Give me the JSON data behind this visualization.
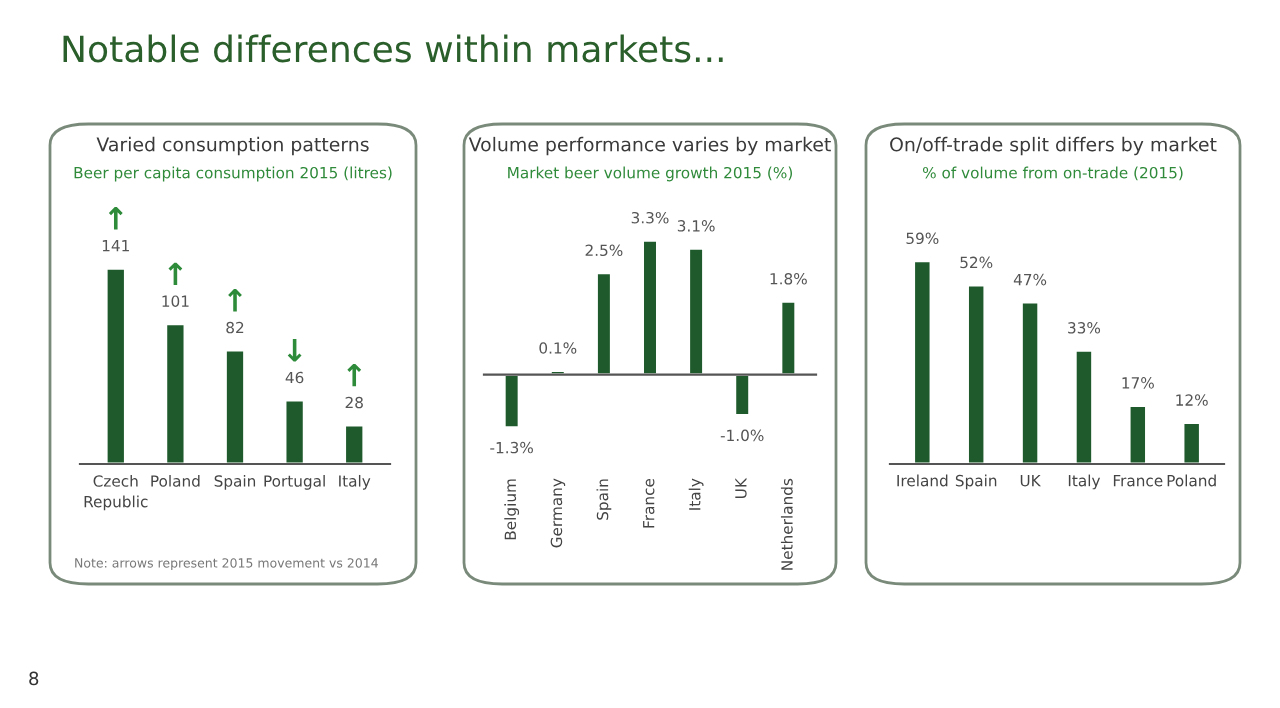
{
  "chart_data": [
    {
      "type": "bar",
      "title": "Varied consumption patterns",
      "subtitle": "Beer per capita consumption 2015 (litres)",
      "categories": [
        "Czech\nRepublic",
        "Poland",
        "Spain",
        "Portugal",
        "Italy"
      ],
      "values": [
        141,
        101,
        82,
        46,
        28
      ],
      "color": "#1e5a2b",
      "data_labels": true,
      "tick_labels": "x",
      "grid": false,
      "annotations": [
        "Notable differences within markets...",
        "Note: arrows represent 2015 movement vs 2014",
        "8",
        "↑",
        "↑",
        "↑",
        "↓",
        "↑"
      ]
    },
    {
      "type": "bar",
      "title": "Volume performance varies by market",
      "subtitle": "Market beer volume growth 2015 (%)",
      "categories": [
        "Belgium",
        "Germany",
        "Spain",
        "France",
        "Italy",
        "UK",
        "Netherlands"
      ],
      "values": [
        -1.3,
        0.1,
        2.5,
        3.3,
        3.1,
        -1.0,
        1.8
      ],
      "value_labels": [
        "-1.3%",
        "0.1%",
        "2.5%",
        "3.3%",
        "3.1%",
        "-1.0%",
        "1.8%"
      ],
      "color": "#1e5a2b",
      "tick_labels": "x",
      "grid": false
    },
    {
      "type": "bar",
      "title": "On/off-trade split differs by market",
      "subtitle": "% of volume from on-trade (2015)",
      "categories": [
        "Ireland",
        "Spain",
        "UK",
        "Italy",
        "France",
        "Poland"
      ],
      "values": [
        59,
        52,
        47,
        33,
        17,
        12
      ],
      "value_labels": [
        "59%",
        "52%",
        "47%",
        "33%",
        "17%",
        "12%"
      ],
      "color": "#1e5a2b",
      "tick_labels": "x",
      "grid": false
    }
  ]
}
